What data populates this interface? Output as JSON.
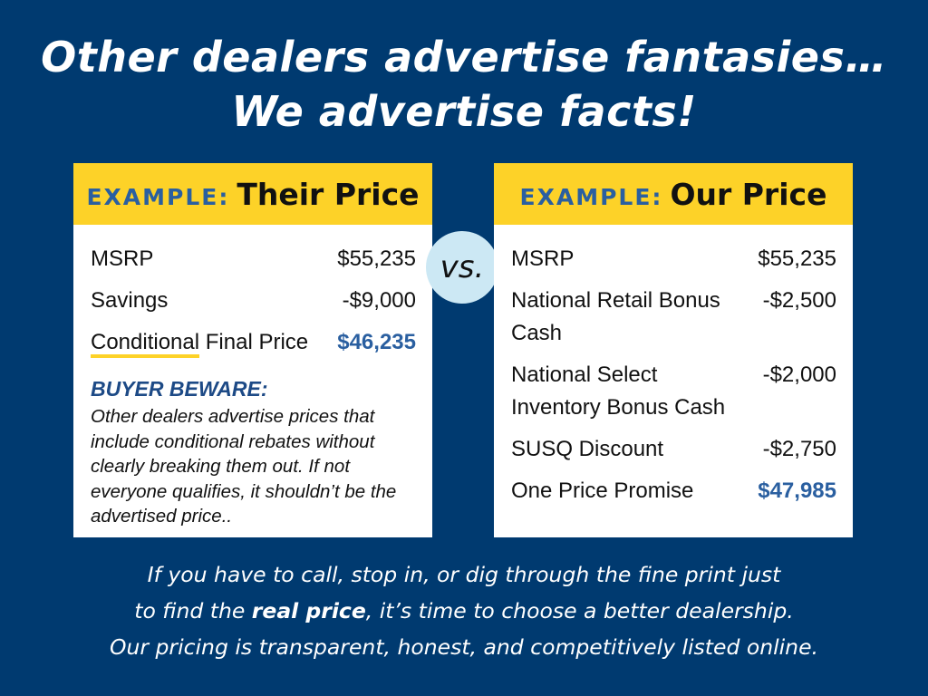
{
  "headline": {
    "line1": "Other dealers advertise fantasies…",
    "line2": "We advertise facts!"
  },
  "left_card": {
    "example_label": "EXAMPLE:",
    "title": "Their Price",
    "rows": [
      {
        "label": "MSRP",
        "value": "$55,235"
      },
      {
        "label": "Savings",
        "value": "-$9,000"
      },
      {
        "label_underlined": "Conditional",
        "label_rest": " Final Price",
        "value": "$46,235"
      }
    ],
    "beware_heading": "BUYER BEWARE:",
    "beware_text": "Other dealers advertise prices that include conditional rebates without clearly breaking them out. If not everyone qualifies, it shouldn’t be the advertised price.."
  },
  "vs_label": "vs.",
  "right_card": {
    "example_label": "EXAMPLE:",
    "title": "Our Price",
    "rows": [
      {
        "label": "MSRP",
        "value": "$55,235"
      },
      {
        "label": "National Retail Bonus Cash",
        "value": "-$2,500"
      },
      {
        "label": "National Select Inventory Bonus Cash",
        "value": "-$2,000"
      },
      {
        "label": "SUSQ Discount",
        "value": "-$2,750"
      },
      {
        "label": "One Price Promise",
        "value": "$47,985"
      }
    ]
  },
  "footer": {
    "line1": "If you have to call, stop in, or dig through the fine print just",
    "line2_pre": "to find the ",
    "line2_bold": "real price",
    "line2_post": ", it’s time to choose a better dealership.",
    "line3": "Our pricing is transparent, honest, and competitively listed online."
  },
  "colors": {
    "background": "#003a70",
    "accent_yellow": "#fdd228",
    "accent_blue": "#2a5fa0",
    "vs_circle": "#cce8f4"
  }
}
